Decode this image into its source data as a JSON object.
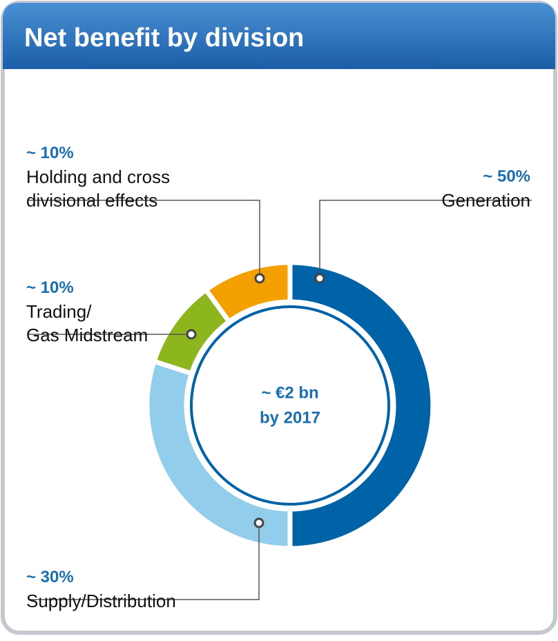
{
  "chart_data": {
    "type": "donut",
    "title": "Net benefit by division",
    "categories": [
      "Generation",
      "Supply/Distribution",
      "Trading/\nGas Midstream",
      "Holding and cross\ndivisional effects"
    ],
    "values": [
      50,
      30,
      10,
      10
    ],
    "value_labels": [
      "~ 50%",
      "~ 30%",
      "~ 10%",
      "~ 10%"
    ],
    "colors": [
      "#0063a8",
      "#92cdec",
      "#8cb51e",
      "#f4a000"
    ],
    "center_label": [
      "~ €2 bn",
      "by 2017"
    ]
  }
}
